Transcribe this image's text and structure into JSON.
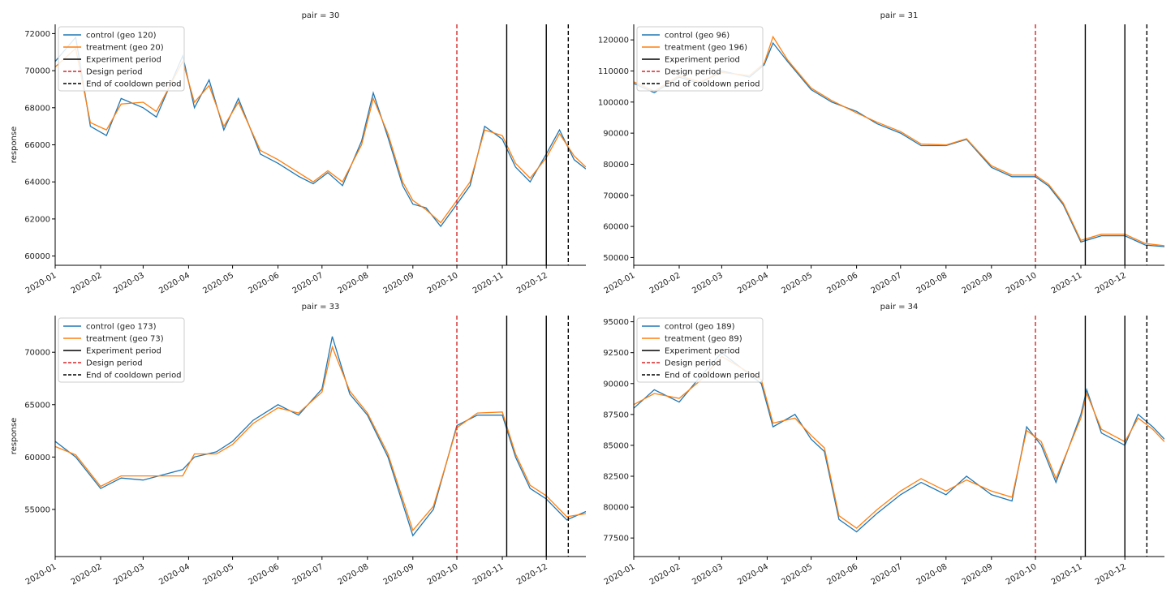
{
  "figure": {
    "xtick_labels": [
      "2020-01",
      "2020-02",
      "2020-03",
      "2020-04",
      "2020-05",
      "2020-06",
      "2020-07",
      "2020-08",
      "2020-09",
      "2020-10",
      "2020-11",
      "2020-12"
    ],
    "colors": {
      "control": "#1f77b4",
      "treatment": "#ff7f0e",
      "experiment": "#000000",
      "design": "#d62728",
      "cooldown": "#000000"
    }
  },
  "chart_data": [
    {
      "type": "line",
      "title": "pair = 30",
      "ylabel": "response",
      "xlim": [
        "2020-01-01",
        "2020-12-28"
      ],
      "ylim": [
        59500,
        72500
      ],
      "yticks": [
        60000,
        62000,
        64000,
        66000,
        68000,
        70000,
        72000
      ],
      "ytick_labels": [
        "60000",
        "62000",
        "64000",
        "66000",
        "68000",
        "70000",
        "72000"
      ],
      "legend_placement": "upper-left",
      "grid": false,
      "vlines": [
        {
          "name": "Design period",
          "date": "2020-10-01",
          "style": "dashed",
          "color": "#d62728"
        },
        {
          "name": "Experiment period",
          "date": "2020-11-04",
          "style": "solid",
          "color": "#000000"
        },
        {
          "name": "Experiment period",
          "date": "2020-12-01",
          "style": "solid",
          "color": "#000000"
        },
        {
          "name": "End of cooldown period",
          "date": "2020-12-16",
          "style": "dashed",
          "color": "#000000"
        }
      ],
      "legend": [
        "control (geo 120)",
        "treatment (geo 20)",
        "Experiment period",
        "Design period",
        "End of cooldown period"
      ],
      "series": [
        {
          "name": "control (geo 120)",
          "color": "#1f77b4",
          "x": [
            "2020-01-01",
            "2020-01-15",
            "2020-01-25",
            "2020-02-05",
            "2020-02-15",
            "2020-03-01",
            "2020-03-10",
            "2020-03-28",
            "2020-04-05",
            "2020-04-15",
            "2020-04-25",
            "2020-05-05",
            "2020-05-20",
            "2020-06-01",
            "2020-06-15",
            "2020-06-25",
            "2020-07-05",
            "2020-07-15",
            "2020-07-28",
            "2020-08-05",
            "2020-08-15",
            "2020-08-25",
            "2020-09-01",
            "2020-09-10",
            "2020-09-20",
            "2020-10-01",
            "2020-10-10",
            "2020-10-20",
            "2020-11-01",
            "2020-11-10",
            "2020-11-20",
            "2020-12-01",
            "2020-12-10",
            "2020-12-20",
            "2020-12-28"
          ],
          "y": [
            70500,
            71800,
            67000,
            66500,
            68500,
            68000,
            67500,
            70800,
            68000,
            69500,
            66800,
            68500,
            65500,
            65000,
            64300,
            63900,
            64500,
            63800,
            66200,
            68800,
            66400,
            63800,
            62800,
            62600,
            61600,
            62800,
            63800,
            67000,
            66300,
            64800,
            64000,
            65500,
            66800,
            65200,
            64700
          ]
        },
        {
          "name": "treatment (geo 20)",
          "color": "#ff7f0e",
          "x": [
            "2020-01-01",
            "2020-01-15",
            "2020-01-25",
            "2020-02-05",
            "2020-02-15",
            "2020-03-01",
            "2020-03-10",
            "2020-03-28",
            "2020-04-05",
            "2020-04-15",
            "2020-04-25",
            "2020-05-05",
            "2020-05-20",
            "2020-06-01",
            "2020-06-15",
            "2020-06-25",
            "2020-07-05",
            "2020-07-15",
            "2020-07-28",
            "2020-08-05",
            "2020-08-15",
            "2020-08-25",
            "2020-09-01",
            "2020-09-10",
            "2020-09-20",
            "2020-10-01",
            "2020-10-10",
            "2020-10-20",
            "2020-11-01",
            "2020-11-10",
            "2020-11-20",
            "2020-12-01",
            "2020-12-10",
            "2020-12-20",
            "2020-12-28"
          ],
          "y": [
            70200,
            71200,
            67200,
            66800,
            68200,
            68300,
            67800,
            70500,
            68300,
            69200,
            67000,
            68300,
            65700,
            65200,
            64500,
            64000,
            64600,
            64000,
            66000,
            68500,
            66600,
            64000,
            63000,
            62500,
            61800,
            63000,
            64000,
            66800,
            66500,
            65000,
            64200,
            65300,
            66600,
            65400,
            64800
          ]
        }
      ]
    },
    {
      "type": "line",
      "title": "pair = 31",
      "ylabel": "",
      "xlim": [
        "2020-01-01",
        "2020-12-28"
      ],
      "ylim": [
        47500,
        125000
      ],
      "yticks": [
        50000,
        60000,
        70000,
        80000,
        90000,
        100000,
        110000,
        120000
      ],
      "ytick_labels": [
        "50000",
        "60000",
        "70000",
        "80000",
        "90000",
        "100000",
        "110000",
        "120000"
      ],
      "legend_placement": "upper-left",
      "grid": false,
      "vlines": [
        {
          "name": "Design period",
          "date": "2020-10-01",
          "style": "dashed",
          "color": "#d62728"
        },
        {
          "name": "Experiment period",
          "date": "2020-11-04",
          "style": "solid",
          "color": "#000000"
        },
        {
          "name": "Experiment period",
          "date": "2020-12-01",
          "style": "solid",
          "color": "#000000"
        },
        {
          "name": "End of cooldown period",
          "date": "2020-12-16",
          "style": "dashed",
          "color": "#000000"
        }
      ],
      "legend": [
        "control (geo 96)",
        "treatment (geo 196)",
        "Experiment period",
        "Design period",
        "End of cooldown period"
      ],
      "series": [
        {
          "name": "control (geo 96)",
          "color": "#1f77b4",
          "x": [
            "2020-01-01",
            "2020-01-15",
            "2020-02-01",
            "2020-02-15",
            "2020-03-01",
            "2020-03-20",
            "2020-03-30",
            "2020-04-05",
            "2020-04-15",
            "2020-05-01",
            "2020-05-15",
            "2020-06-01",
            "2020-06-15",
            "2020-07-01",
            "2020-07-15",
            "2020-08-01",
            "2020-08-15",
            "2020-09-01",
            "2020-09-15",
            "2020-10-01",
            "2020-10-10",
            "2020-10-20",
            "2020-11-01",
            "2020-11-15",
            "2020-12-01",
            "2020-12-15",
            "2020-12-28"
          ],
          "y": [
            106000,
            103000,
            108000,
            106000,
            110000,
            108000,
            112000,
            119000,
            113000,
            104000,
            100000,
            97000,
            93000,
            90000,
            86000,
            86000,
            88000,
            79000,
            76000,
            76000,
            73000,
            67000,
            55000,
            57000,
            57000,
            54000,
            53500
          ]
        },
        {
          "name": "treatment (geo 196)",
          "color": "#ff7f0e",
          "x": [
            "2020-01-01",
            "2020-01-15",
            "2020-02-01",
            "2020-02-15",
            "2020-03-01",
            "2020-03-20",
            "2020-03-30",
            "2020-04-05",
            "2020-04-15",
            "2020-05-01",
            "2020-05-15",
            "2020-06-01",
            "2020-06-15",
            "2020-07-01",
            "2020-07-15",
            "2020-08-01",
            "2020-08-15",
            "2020-09-01",
            "2020-09-15",
            "2020-10-01",
            "2020-10-10",
            "2020-10-20",
            "2020-11-01",
            "2020-11-15",
            "2020-12-01",
            "2020-12-15",
            "2020-12-28"
          ],
          "y": [
            106500,
            103500,
            108500,
            106500,
            109500,
            108500,
            112500,
            121000,
            113500,
            104500,
            100500,
            96500,
            93500,
            90500,
            86500,
            86200,
            88200,
            79500,
            76500,
            76500,
            73500,
            67500,
            55500,
            57500,
            57500,
            54500,
            53800
          ]
        }
      ]
    },
    {
      "type": "line",
      "title": "pair = 33",
      "ylabel": "response",
      "xlim": [
        "2020-01-01",
        "2020-12-28"
      ],
      "ylim": [
        50500,
        73500
      ],
      "yticks": [
        55000,
        60000,
        65000,
        70000
      ],
      "ytick_labels": [
        "55000",
        "60000",
        "65000",
        "70000"
      ],
      "legend_placement": "upper-left",
      "grid": false,
      "vlines": [
        {
          "name": "Design period",
          "date": "2020-10-01",
          "style": "dashed",
          "color": "#d62728"
        },
        {
          "name": "Experiment period",
          "date": "2020-11-04",
          "style": "solid",
          "color": "#000000"
        },
        {
          "name": "Experiment period",
          "date": "2020-12-01",
          "style": "solid",
          "color": "#000000"
        },
        {
          "name": "End of cooldown period",
          "date": "2020-12-16",
          "style": "dashed",
          "color": "#000000"
        }
      ],
      "legend": [
        "control (geo 173)",
        "treatment (geo 73)",
        "Experiment period",
        "Design period",
        "End of cooldown period"
      ],
      "series": [
        {
          "name": "control (geo 173)",
          "color": "#1f77b4",
          "x": [
            "2020-01-01",
            "2020-01-15",
            "2020-02-01",
            "2020-02-15",
            "2020-03-01",
            "2020-03-28",
            "2020-04-05",
            "2020-04-20",
            "2020-05-01",
            "2020-05-15",
            "2020-06-01",
            "2020-06-15",
            "2020-07-01",
            "2020-07-08",
            "2020-07-20",
            "2020-08-01",
            "2020-08-15",
            "2020-09-01",
            "2020-09-15",
            "2020-10-01",
            "2020-10-15",
            "2020-11-01",
            "2020-11-10",
            "2020-11-20",
            "2020-12-01",
            "2020-12-15",
            "2020-12-28"
          ],
          "y": [
            61500,
            60000,
            57000,
            58000,
            57800,
            58800,
            60000,
            60500,
            61500,
            63500,
            65000,
            64000,
            66500,
            71500,
            66000,
            64000,
            60000,
            52500,
            55000,
            63000,
            64000,
            64000,
            60000,
            57000,
            56000,
            54000,
            54800
          ]
        },
        {
          "name": "treatment (geo 73)",
          "color": "#ff7f0e",
          "x": [
            "2020-01-01",
            "2020-01-15",
            "2020-02-01",
            "2020-02-15",
            "2020-03-01",
            "2020-03-28",
            "2020-04-05",
            "2020-04-20",
            "2020-05-01",
            "2020-05-15",
            "2020-06-01",
            "2020-06-15",
            "2020-07-01",
            "2020-07-08",
            "2020-07-20",
            "2020-08-01",
            "2020-08-15",
            "2020-09-01",
            "2020-09-15",
            "2020-10-01",
            "2020-10-15",
            "2020-11-01",
            "2020-11-10",
            "2020-11-20",
            "2020-12-01",
            "2020-12-15",
            "2020-12-28"
          ],
          "y": [
            61000,
            60200,
            57200,
            58200,
            58200,
            58200,
            60300,
            60300,
            61200,
            63200,
            64700,
            64200,
            66200,
            70500,
            66300,
            64200,
            60300,
            53000,
            55300,
            62800,
            64200,
            64300,
            60300,
            57300,
            56300,
            54300,
            54600
          ]
        }
      ]
    },
    {
      "type": "line",
      "title": "pair = 34",
      "ylabel": "",
      "xlim": [
        "2020-01-01",
        "2020-12-28"
      ],
      "ylim": [
        76000,
        95500
      ],
      "yticks": [
        77500,
        80000,
        82500,
        85000,
        87500,
        90000,
        92500,
        95000
      ],
      "ytick_labels": [
        "77500",
        "80000",
        "82500",
        "85000",
        "87500",
        "90000",
        "92500",
        "95000"
      ],
      "legend_placement": "upper-left",
      "grid": false,
      "vlines": [
        {
          "name": "Design period",
          "date": "2020-10-01",
          "style": "dashed",
          "color": "#d62728"
        },
        {
          "name": "Experiment period",
          "date": "2020-11-04",
          "style": "solid",
          "color": "#000000"
        },
        {
          "name": "Experiment period",
          "date": "2020-12-01",
          "style": "solid",
          "color": "#000000"
        },
        {
          "name": "End of cooldown period",
          "date": "2020-12-16",
          "style": "dashed",
          "color": "#000000"
        }
      ],
      "legend": [
        "control (geo 189)",
        "treatment (geo 89)",
        "Experiment period",
        "Design period",
        "End of cooldown period"
      ],
      "series": [
        {
          "name": "control (geo 189)",
          "color": "#1f77b4",
          "x": [
            "2020-01-01",
            "2020-01-15",
            "2020-02-01",
            "2020-02-15",
            "2020-03-01",
            "2020-03-28",
            "2020-04-05",
            "2020-04-20",
            "2020-05-01",
            "2020-05-10",
            "2020-05-20",
            "2020-06-01",
            "2020-06-15",
            "2020-07-01",
            "2020-07-15",
            "2020-08-01",
            "2020-08-15",
            "2020-09-01",
            "2020-09-15",
            "2020-09-25",
            "2020-10-05",
            "2020-10-15",
            "2020-11-01",
            "2020-11-05",
            "2020-11-15",
            "2020-12-01",
            "2020-12-10",
            "2020-12-20",
            "2020-12-28"
          ],
          "y": [
            88000,
            89500,
            88500,
            90500,
            92500,
            90000,
            86500,
            87500,
            85500,
            84500,
            79000,
            78000,
            79500,
            81000,
            82000,
            81000,
            82500,
            81000,
            80500,
            86500,
            85000,
            82000,
            87500,
            89500,
            86000,
            85000,
            87500,
            86500,
            85500
          ]
        },
        {
          "name": "treatment (geo 89)",
          "color": "#ff7f0e",
          "x": [
            "2020-01-01",
            "2020-01-15",
            "2020-02-01",
            "2020-02-15",
            "2020-03-01",
            "2020-03-28",
            "2020-04-05",
            "2020-04-20",
            "2020-05-01",
            "2020-05-10",
            "2020-05-20",
            "2020-06-01",
            "2020-06-15",
            "2020-07-01",
            "2020-07-15",
            "2020-08-01",
            "2020-08-15",
            "2020-09-01",
            "2020-09-15",
            "2020-09-25",
            "2020-10-05",
            "2020-10-15",
            "2020-11-01",
            "2020-11-05",
            "2020-11-15",
            "2020-12-01",
            "2020-12-10",
            "2020-12-20",
            "2020-12-28"
          ],
          "y": [
            88300,
            89200,
            88800,
            90200,
            92200,
            90300,
            86800,
            87200,
            85800,
            84800,
            79300,
            78300,
            79800,
            81300,
            82300,
            81300,
            82200,
            81300,
            80800,
            86200,
            85300,
            82300,
            87200,
            89200,
            86300,
            85300,
            87200,
            86300,
            85300
          ]
        }
      ]
    }
  ]
}
